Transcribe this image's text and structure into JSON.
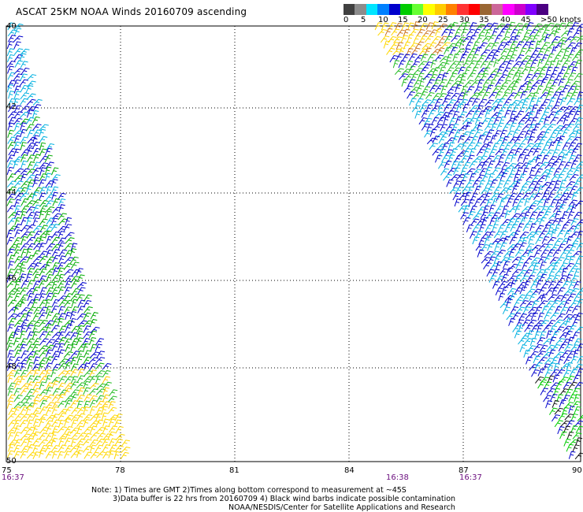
{
  "title": "ASCAT 25KM NOAA Winds 20160709 ascending",
  "colorbar": {
    "colors": [
      "#404040",
      "#8c8c8c",
      "#00e5ff",
      "#0080ff",
      "#0000cc",
      "#00cc00",
      "#66ff33",
      "#ffff00",
      "#ffcc00",
      "#ff8000",
      "#ff3333",
      "#ff0000",
      "#996633",
      "#cc6699",
      "#ff00ff",
      "#cc00cc",
      "#8000ff",
      "#4b0082"
    ],
    "labels": [
      "0",
      "5",
      "10",
      "15",
      "20",
      "25",
      "30",
      "35",
      "40",
      "45",
      ">50 knots"
    ]
  },
  "axes": {
    "x_ticks": [
      "75",
      "78",
      "81",
      "84",
      "87",
      "90"
    ],
    "y_ticks": [
      "40",
      "42",
      "44",
      "46",
      "48",
      "50"
    ]
  },
  "swaths": {
    "left": {
      "time": "16:37"
    },
    "right": {
      "times": [
        "16:38",
        "16:37"
      ]
    }
  },
  "notes": {
    "line1": "Note: 1) Times are GMT 2)Times along bottom correspond to measurement at ~45S",
    "line2": "3)Data buffer is 22 hrs from 20160709 4) Black wind barbs indicate possible contamination",
    "line3": "NOAA/NESDIS/Center for Satellite Applications and Research"
  }
}
